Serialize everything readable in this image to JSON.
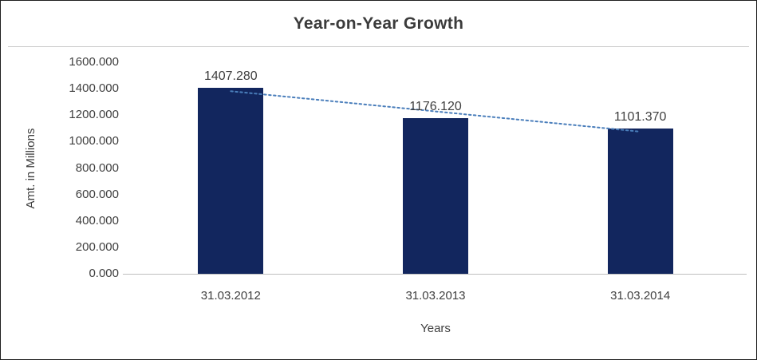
{
  "chart_data": {
    "type": "bar",
    "title": "Year-on-Year Growth",
    "categories": [
      "31.03.2012",
      "31.03.2013",
      "31.03.2014"
    ],
    "values": [
      1407.28,
      1176.12,
      1101.37
    ],
    "data_labels": [
      "1407.280",
      "1176.120",
      "1101.370"
    ],
    "xlabel": "Years",
    "ylabel": "Amt. in Millions",
    "ylim": [
      0,
      1600
    ],
    "y_ticks": [
      "0.000",
      "200.000",
      "400.000",
      "600.000",
      "800.000",
      "1000.000",
      "1200.000",
      "1400.000",
      "1600.000"
    ],
    "grid": "off",
    "legend": "none",
    "bar_color": "#12265e",
    "text_color": "#3f3f3f",
    "trendline": {
      "type": "linear",
      "style": "dotted",
      "color": "#4a7ebb"
    }
  }
}
